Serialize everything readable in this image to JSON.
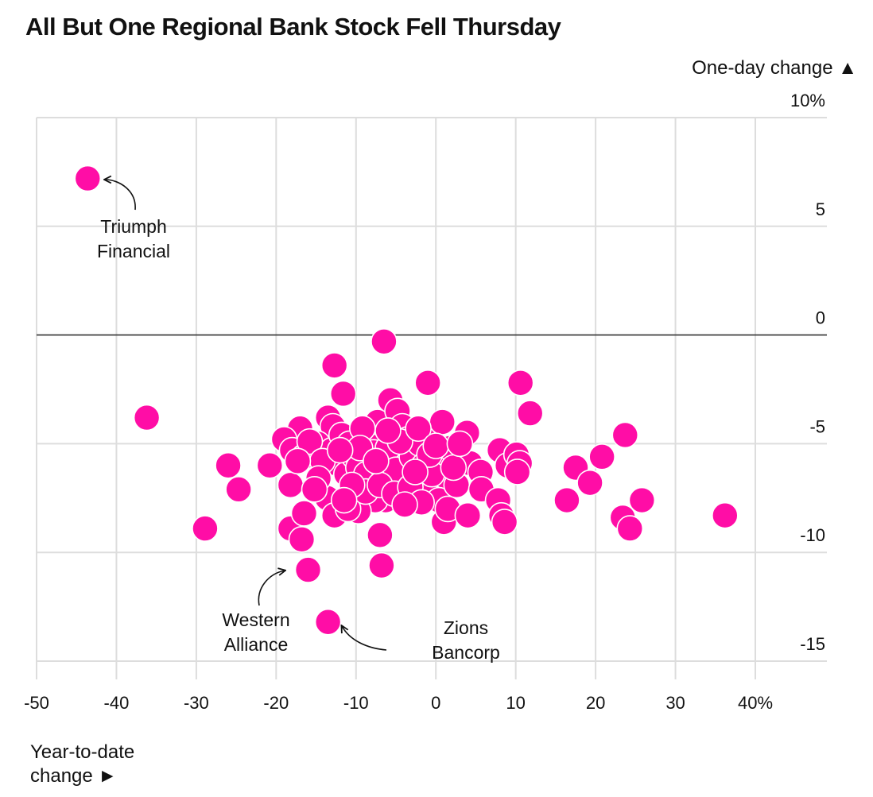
{
  "title": "All But One Regional Bank Stock Fell Thursday",
  "y_axis_label": "One-day change ▲",
  "x_axis_label": [
    "Year-to-date",
    "change ►"
  ],
  "colors": {
    "dot": "#ff0da6",
    "grid": "#dddddd",
    "zero": "#333333",
    "text": "#111111"
  },
  "chart_data": {
    "type": "scatter",
    "title": "All But One Regional Bank Stock Fell Thursday",
    "xlabel": "Year-to-date change",
    "ylabel": "One-day change",
    "xlim": [
      -50,
      45
    ],
    "ylim": [
      -15.5,
      10
    ],
    "x_ticks": [
      "-50",
      "-40",
      "-30",
      "-20",
      "-10",
      "0",
      "10",
      "20",
      "30",
      "40%"
    ],
    "y_ticks": [
      "10%",
      "5",
      "0",
      "-5",
      "-10",
      "-15"
    ],
    "grid": true,
    "annotations": [
      {
        "lines": [
          "Triumph",
          "Financial"
        ],
        "x": -43.6,
        "y": 7.2
      },
      {
        "lines": [
          "Western",
          "Alliance"
        ],
        "x": -16,
        "y": -10.8
      },
      {
        "lines": [
          "Zions",
          "Bancorp"
        ],
        "x": -13.5,
        "y": -13.2
      }
    ],
    "points": [
      [
        -43.6,
        7.2
      ],
      [
        -6.5,
        -0.3
      ],
      [
        -36.2,
        -3.8
      ],
      [
        -28.9,
        -8.9
      ],
      [
        -26.0,
        -6.0
      ],
      [
        -24.7,
        -7.1
      ],
      [
        -20.8,
        -6.0
      ],
      [
        -18.2,
        -6.9
      ],
      [
        -18.2,
        -8.9
      ],
      [
        -16.8,
        -9.4
      ],
      [
        -16.0,
        -10.8
      ],
      [
        -16.5,
        -8.2
      ],
      [
        -13.5,
        -13.2
      ],
      [
        -7.0,
        -9.2
      ],
      [
        -6.8,
        -10.6
      ],
      [
        -12.7,
        -1.4
      ],
      [
        -11.6,
        -2.7
      ],
      [
        -13.5,
        -3.8
      ],
      [
        -12.9,
        -4.2
      ],
      [
        -17.0,
        -4.3
      ],
      [
        -19.0,
        -4.8
      ],
      [
        -18.0,
        -5.3
      ],
      [
        -16.5,
        -5.6
      ],
      [
        -14.8,
        -5.0
      ],
      [
        -13.0,
        -5.3
      ],
      [
        -12.5,
        -5.9
      ],
      [
        -11.2,
        -6.4
      ],
      [
        -10.2,
        -5.6
      ],
      [
        -9.7,
        -6.1
      ],
      [
        -8.7,
        -6.4
      ],
      [
        -8.2,
        -5.0
      ],
      [
        -8.2,
        -4.5
      ],
      [
        -7.3,
        -4.0
      ],
      [
        -5.7,
        -3.0
      ],
      [
        -4.8,
        -3.5
      ],
      [
        -4.2,
        -4.2
      ],
      [
        -3.5,
        -4.8
      ],
      [
        -2.9,
        -5.3
      ],
      [
        -4.3,
        -5.8
      ],
      [
        -5.5,
        -6.6
      ],
      [
        -6.3,
        -7.6
      ],
      [
        -7.6,
        -7.6
      ],
      [
        -9.7,
        -8.1
      ],
      [
        -10.6,
        -7.2
      ],
      [
        -12.8,
        -7.9
      ],
      [
        -13.6,
        -7.5
      ],
      [
        -12.7,
        -8.3
      ],
      [
        -11.0,
        -8.0
      ],
      [
        -3.7,
        -6.4
      ],
      [
        -2.5,
        -6.9
      ],
      [
        -1.2,
        -7.3
      ],
      [
        -1.0,
        -2.2
      ],
      [
        -0.5,
        -4.6
      ],
      [
        0.8,
        -4.0
      ],
      [
        1.1,
        -5.6
      ],
      [
        1.8,
        -5.2
      ],
      [
        1.2,
        -6.5
      ],
      [
        0.4,
        -7.6
      ],
      [
        1.0,
        -8.6
      ],
      [
        1.5,
        -8.0
      ],
      [
        2.6,
        -6.9
      ],
      [
        3.9,
        -4.5
      ],
      [
        4.3,
        -5.9
      ],
      [
        4.0,
        -8.3
      ],
      [
        5.6,
        -6.3
      ],
      [
        5.7,
        -7.1
      ],
      [
        7.8,
        -7.6
      ],
      [
        8.2,
        -8.3
      ],
      [
        8.6,
        -8.6
      ],
      [
        8.0,
        -5.3
      ],
      [
        9.0,
        -6.0
      ],
      [
        10.1,
        -5.5
      ],
      [
        10.5,
        -5.9
      ],
      [
        10.2,
        -6.3
      ],
      [
        10.6,
        -2.2
      ],
      [
        11.8,
        -3.6
      ],
      [
        16.4,
        -7.6
      ],
      [
        17.5,
        -6.1
      ],
      [
        19.3,
        -6.8
      ],
      [
        20.8,
        -5.6
      ],
      [
        23.7,
        -4.6
      ],
      [
        23.4,
        -8.4
      ],
      [
        24.3,
        -8.9
      ],
      [
        25.8,
        -7.6
      ],
      [
        36.2,
        -8.3
      ],
      [
        -15.8,
        -4.9
      ],
      [
        -14.2,
        -5.8
      ],
      [
        -11.8,
        -4.6
      ],
      [
        -10.8,
        -5.0
      ],
      [
        -9.2,
        -4.3
      ],
      [
        -7.8,
        -5.4
      ],
      [
        -6.8,
        -6.0
      ],
      [
        -6.0,
        -5.2
      ],
      [
        -5.0,
        -6.2
      ],
      [
        -3.0,
        -5.6
      ],
      [
        -2.0,
        -5.0
      ],
      [
        -1.5,
        -6.0
      ],
      [
        -0.5,
        -6.4
      ],
      [
        -8.8,
        -7.2
      ],
      [
        -7.0,
        -6.9
      ],
      [
        -5.2,
        -7.3
      ],
      [
        -3.2,
        -7.0
      ],
      [
        -1.8,
        -7.7
      ],
      [
        -10.5,
        -6.9
      ],
      [
        -14.7,
        -6.6
      ],
      [
        -9.5,
        -5.2
      ],
      [
        -4.5,
        -4.9
      ],
      [
        -6.0,
        -4.4
      ],
      [
        -2.2,
        -4.3
      ],
      [
        -0.8,
        -5.5
      ],
      [
        -11.5,
        -7.6
      ],
      [
        -15.2,
        -7.1
      ],
      [
        0.0,
        -5.1
      ],
      [
        2.2,
        -6.1
      ],
      [
        3.0,
        -5.0
      ],
      [
        -17.3,
        -5.8
      ],
      [
        -7.5,
        -5.8
      ],
      [
        -2.6,
        -6.3
      ],
      [
        -12.0,
        -5.3
      ],
      [
        -3.9,
        -7.8
      ]
    ]
  }
}
